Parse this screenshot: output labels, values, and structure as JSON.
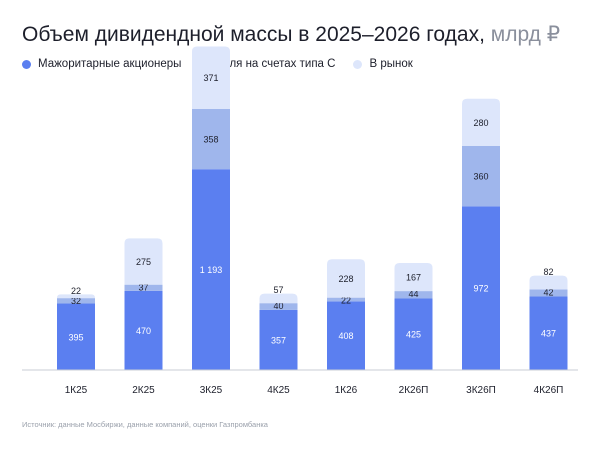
{
  "title": "Объем дивидендной массы в 2025–2026 годах,",
  "title_unit": "млрд ₽",
  "legend": [
    {
      "label": "Мажоритарные акционеры",
      "color": "#5b7ff0"
    },
    {
      "label": "Доля на счетах типа С",
      "color": "#9fb6ec"
    },
    {
      "label": "В рынок",
      "color": "#dde6fb"
    }
  ],
  "source": "Источник: данные Мосбиржи, данные компаний, оценки Газпромбанка",
  "chart_data": {
    "type": "bar",
    "stacked": true,
    "categories": [
      "1К25",
      "2К25",
      "3К25",
      "4К25",
      "1К26",
      "2К26П",
      "3К26П",
      "4К26П"
    ],
    "series": [
      {
        "name": "Мажоритарные акционеры",
        "values": [
          395,
          470,
          1193,
          357,
          408,
          425,
          972,
          437
        ],
        "labels": [
          "395",
          "470",
          "1 193",
          "357",
          "408",
          "425",
          "972",
          "437"
        ],
        "color": "#5b7ff0"
      },
      {
        "name": "Доля на счетах типа С",
        "values": [
          32,
          37,
          358,
          40,
          22,
          44,
          360,
          42
        ],
        "labels": [
          "32",
          "37",
          "358",
          "40",
          "22",
          "44",
          "360",
          "42"
        ],
        "color": "#9fb6ec"
      },
      {
        "name": "В рынок",
        "values": [
          22,
          275,
          371,
          57,
          228,
          167,
          280,
          82
        ],
        "labels": [
          "22",
          "275",
          "371",
          "57",
          "228",
          "167",
          "280",
          "82"
        ],
        "color": "#dde6fb"
      }
    ]
  }
}
